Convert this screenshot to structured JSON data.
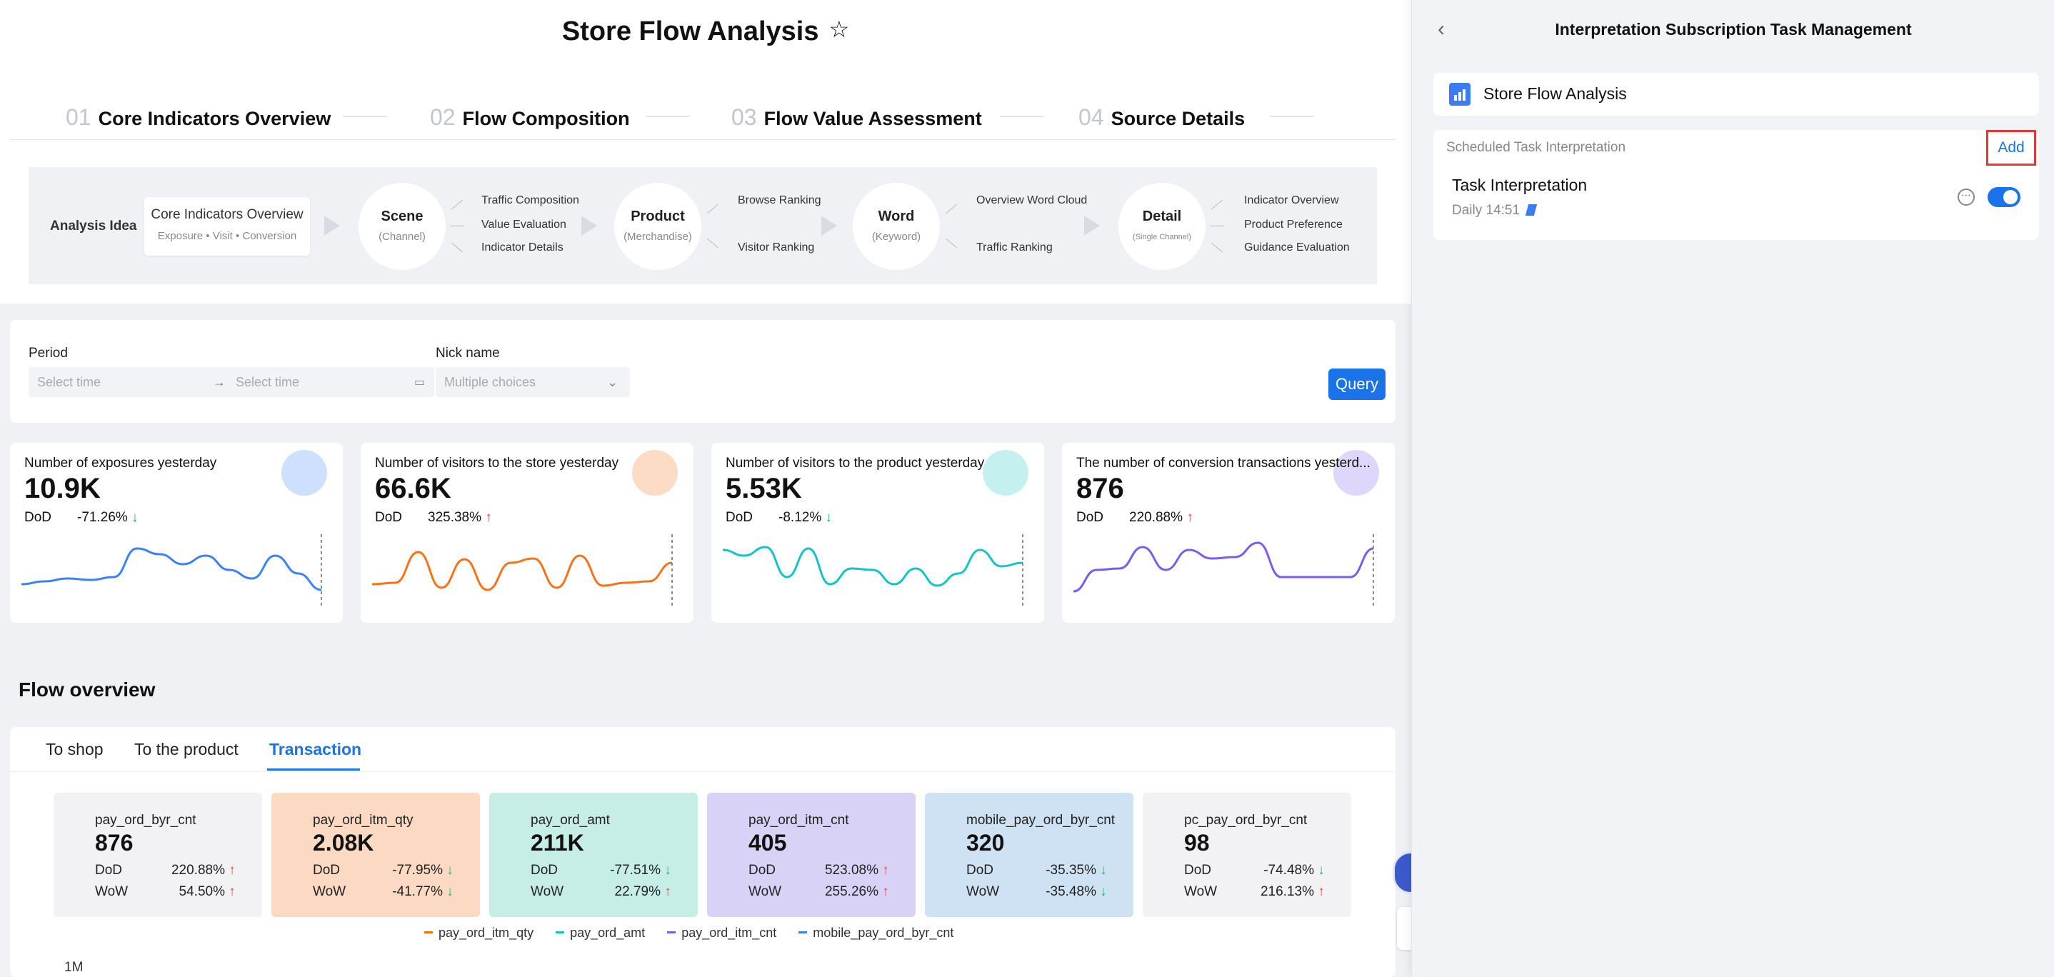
{
  "page": {
    "title": "Store Flow Analysis",
    "star_icon": "star-icon"
  },
  "steps": [
    {
      "num": "01",
      "label": "Core Indicators Overview"
    },
    {
      "num": "02",
      "label": "Flow Composition"
    },
    {
      "num": "03",
      "label": "Flow Value Assessment"
    },
    {
      "num": "04",
      "label": "Source Details"
    }
  ],
  "idea": {
    "label": "Analysis Idea",
    "core": {
      "title": "Core Indicators Overview",
      "sub": "Exposure • Visit • Conversion"
    },
    "nodes": [
      {
        "title": "Scene",
        "sub": "(Channel)",
        "branches": [
          "Traffic Composition",
          "Value Evaluation",
          "Indicator Details"
        ]
      },
      {
        "title": "Product",
        "sub": "(Merchandise)",
        "branches": [
          "Browse Ranking",
          "Visitor Ranking"
        ]
      },
      {
        "title": "Word",
        "sub": "(Keyword)",
        "branches": [
          "Overview Word Cloud",
          "Traffic Ranking"
        ]
      },
      {
        "title": "Detail",
        "sub": "(Single Channel)",
        "branches": [
          "Indicator Overview",
          "Product Preference",
          "Guidance Evaluation"
        ]
      }
    ]
  },
  "filters": {
    "period_label": "Period",
    "start_placeholder": "Select time",
    "end_placeholder": "Select time",
    "nick_label": "Nick name",
    "nick_placeholder": "Multiple choices",
    "query_label": "Query"
  },
  "kpis": [
    {
      "title": "Number of exposures yesterday",
      "value": "10.9K",
      "dod_label": "DoD",
      "dod": "-71.26%",
      "dir": "down",
      "color": "#3b82f6",
      "series": [
        30,
        34,
        38,
        36,
        40,
        80,
        72,
        58,
        70,
        50,
        38,
        70,
        45,
        22
      ]
    },
    {
      "title": "Number of visitors to the store yesterday",
      "value": "66.6K",
      "dod_label": "DoD",
      "dod": "325.38%",
      "dir": "up",
      "color": "#f97316",
      "series": [
        30,
        32,
        75,
        25,
        65,
        22,
        60,
        66,
        25,
        70,
        28,
        32,
        34,
        60
      ]
    },
    {
      "title": "Number of visitors to the product yesterday",
      "value": "5.53K",
      "dod_label": "DoD",
      "dod": "-8.12%",
      "dir": "down",
      "color": "#14c4c4",
      "series": [
        78,
        70,
        82,
        40,
        80,
        30,
        52,
        50,
        30,
        52,
        28,
        45,
        78,
        55,
        60
      ]
    },
    {
      "title": "The number of conversion transactions yesterd...",
      "value": "876",
      "dod_label": "DoD",
      "dod": "220.88%",
      "dir": "up",
      "color": "#7c5cf0",
      "series": [
        20,
        50,
        52,
        82,
        50,
        78,
        66,
        68,
        88,
        40,
        40,
        40,
        40,
        80
      ]
    }
  ],
  "flow_overview": {
    "title": "Flow overview",
    "tabs": [
      {
        "label": "To shop",
        "active": false
      },
      {
        "label": "To the product",
        "active": false
      },
      {
        "label": "Transaction",
        "active": true
      }
    ],
    "metrics": [
      {
        "name": "pay_ord_byr_cnt",
        "value": "876",
        "dod": "220.88%",
        "dod_dir": "up",
        "wow": "54.50%",
        "wow_dir": "up",
        "bg": "#f2f2f4"
      },
      {
        "name": "pay_ord_itm_qty",
        "value": "2.08K",
        "dod": "-77.95%",
        "dod_dir": "down",
        "wow": "-41.77%",
        "wow_dir": "down",
        "bg": "#fcd9c2"
      },
      {
        "name": "pay_ord_amt",
        "value": "211K",
        "dod": "-77.51%",
        "dod_dir": "down",
        "wow": "22.79%",
        "wow_dir": "up",
        "bg": "#c7eee6"
      },
      {
        "name": "pay_ord_itm_cnt",
        "value": "405",
        "dod": "523.08%",
        "dod_dir": "up",
        "wow": "255.26%",
        "wow_dir": "up",
        "bg": "#d8d2f6"
      },
      {
        "name": "mobile_pay_ord_byr_cnt",
        "value": "320",
        "dod": "-35.35%",
        "dod_dir": "down",
        "wow": "-35.48%",
        "wow_dir": "down",
        "bg": "#cfe2f3"
      },
      {
        "name": "pc_pay_ord_byr_cnt",
        "value": "98",
        "dod": "-74.48%",
        "dod_dir": "down",
        "wow": "216.13%",
        "wow_dir": "up",
        "bg": "#f2f2f4"
      }
    ],
    "dod_label": "DoD",
    "wow_label": "WoW",
    "legend": [
      {
        "name": "pay_ord_itm_qty",
        "color": "#f97316"
      },
      {
        "name": "pay_ord_amt",
        "color": "#14c4c4"
      },
      {
        "name": "pay_ord_itm_cnt",
        "color": "#7c5cf0"
      },
      {
        "name": "mobile_pay_ord_byr_cnt",
        "color": "#3b82f6"
      }
    ],
    "y_top_label": "1M"
  },
  "panel": {
    "back_icon": "chevron-left-icon",
    "title": "Interpretation Subscription Task Management",
    "report_name": "Store Flow Analysis",
    "section_label": "Scheduled Task Interpretation",
    "add_label": "Add",
    "task_name": "Task Interpretation",
    "task_schedule": "Daily 14:51",
    "toggle_on": true
  }
}
